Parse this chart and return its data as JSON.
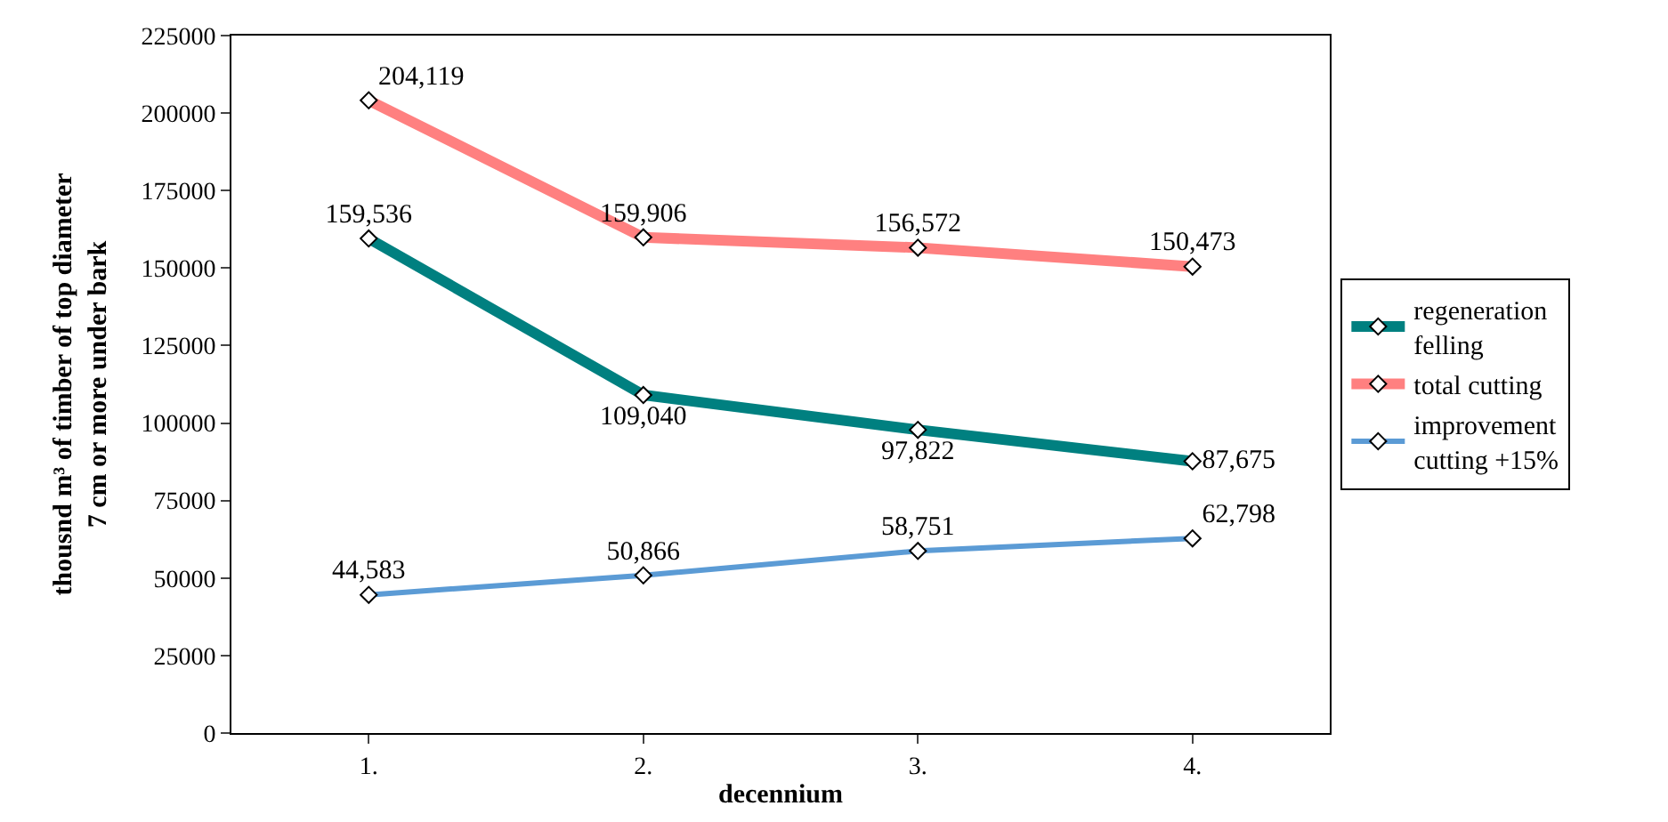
{
  "chart_data": {
    "type": "line",
    "xlabel": "decennium",
    "ylabel": "thousnd m³ of timber of top diameter\n7 cm or more under bark",
    "categories": [
      "1.",
      "2.",
      "3.",
      "4."
    ],
    "series": [
      {
        "name": "regeneration felling",
        "color": "#008080",
        "values": [
          159536,
          109040,
          97822,
          87675
        ],
        "value_labels": [
          "159,536",
          "109,040",
          "97,822",
          "87,675"
        ]
      },
      {
        "name": "total cutting",
        "color": "#ff8080",
        "values": [
          204119,
          159906,
          156572,
          150473
        ],
        "value_labels": [
          "204,119",
          "159,906",
          "156,572",
          "150,473"
        ]
      },
      {
        "name": "improvement cutting +15%",
        "color": "#5b9bd5",
        "values": [
          44583,
          50866,
          58751,
          62798
        ],
        "value_labels": [
          "44,583",
          "50,866",
          "58,751",
          "62,798"
        ]
      }
    ],
    "ylim": [
      0,
      225000
    ],
    "yticks": [
      0,
      25000,
      50000,
      75000,
      100000,
      125000,
      150000,
      175000,
      200000,
      225000
    ],
    "legend": "right",
    "marker": "diamond",
    "line_style": "solid"
  }
}
